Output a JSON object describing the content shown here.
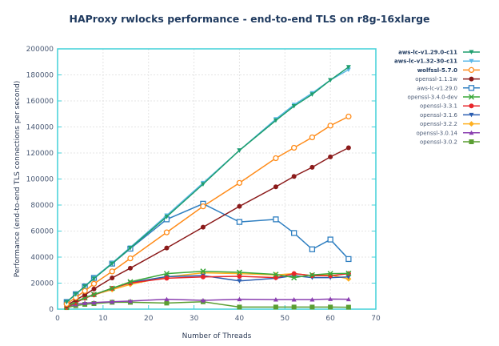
{
  "chart_data": {
    "type": "line",
    "title": "HAProxy rwlocks performance - end-to-end TLS on r8g-16xlarge",
    "xlabel": "Number of Threads",
    "ylabel": "Performance (end-to-end TLS connections per second)",
    "xlim": [
      0,
      70
    ],
    "ylim": [
      0,
      200000
    ],
    "xticks": [
      0,
      10,
      20,
      30,
      40,
      50,
      60,
      70
    ],
    "yticks": [
      0,
      20000,
      40000,
      60000,
      80000,
      100000,
      120000,
      140000,
      160000,
      180000,
      200000
    ],
    "grid": true,
    "legend": "right",
    "x": [
      2,
      4,
      6,
      8,
      12,
      16,
      24,
      32,
      40,
      48,
      52,
      56,
      60,
      64
    ],
    "series": [
      {
        "name": "aws-lc-v1.29.0-c11",
        "color": "#1e9e6e",
        "marker": "triangle-down",
        "bold": true,
        "values": [
          5500,
          11500,
          17500,
          23500,
          35000,
          47000,
          71000,
          96000,
          122000,
          145000,
          156000,
          165000,
          176000,
          186000
        ]
      },
      {
        "name": "aws-lc-v1.32-30-c11",
        "color": "#5bb8e8",
        "marker": "triangle-down",
        "bold": true,
        "values": [
          5500,
          11500,
          17500,
          24000,
          35500,
          47500,
          72000,
          97000,
          122000,
          146000,
          157000,
          166000,
          176000,
          184000
        ]
      },
      {
        "name": "wolfssl-5.7.0",
        "color": "#ff8c1a",
        "marker": "circle-open",
        "bold": true,
        "values": [
          4000,
          9000,
          14000,
          19500,
          29000,
          39000,
          59000,
          79000,
          97000,
          116000,
          124000,
          132000,
          141000,
          148000
        ]
      },
      {
        "name": "openssl-1.1.1w",
        "color": "#8b1a1a",
        "marker": "circle",
        "values": [
          3000,
          7000,
          11000,
          15500,
          24000,
          31500,
          47000,
          63000,
          79000,
          94000,
          102000,
          109000,
          117000,
          124000
        ]
      },
      {
        "name": "aws-lc-v1.29.0",
        "color": "#2f7fc1",
        "marker": "square-open",
        "values": [
          5500,
          11500,
          17500,
          24000,
          35000,
          46500,
          69000,
          81000,
          67000,
          69000,
          58500,
          46000,
          53500,
          38500
        ]
      },
      {
        "name": "openssl-3.4.0-dev",
        "color": "#3aa83a",
        "marker": "x",
        "values": [
          2000,
          5700,
          8800,
          11300,
          16000,
          21000,
          27300,
          29100,
          28300,
          26700,
          24200,
          26300,
          27300,
          27500
        ]
      },
      {
        "name": "openssl-3.3.1",
        "color": "#e8262b",
        "marker": "circle",
        "values": [
          1500,
          5000,
          8500,
          11000,
          16000,
          20100,
          23800,
          24800,
          25200,
          24200,
          27300,
          25800,
          25600,
          27300
        ]
      },
      {
        "name": "openssl-3.1.6",
        "color": "#2a5db0",
        "marker": "triangle-down",
        "values": [
          1500,
          5000,
          8500,
          11000,
          16000,
          20500,
          25000,
          25800,
          21700,
          23800,
          25800,
          24200,
          24200,
          24800
        ]
      },
      {
        "name": "openssl-3.2.2",
        "color": "#ffb020",
        "marker": "diamond",
        "values": [
          1500,
          5000,
          8500,
          11000,
          15000,
          19000,
          24800,
          27900,
          27300,
          26300,
          27300,
          25800,
          26300,
          23200
        ]
      },
      {
        "name": "openssl-3.0.14",
        "color": "#8a3fb0",
        "marker": "triangle-up",
        "values": [
          2000,
          3700,
          4700,
          5100,
          5700,
          6200,
          7600,
          6800,
          7600,
          7400,
          7400,
          7400,
          7800,
          7600
        ]
      },
      {
        "name": "openssl-3.0.2",
        "color": "#5a9e32",
        "marker": "square",
        "values": [
          1200,
          2700,
          3700,
          4300,
          5300,
          5300,
          4700,
          5700,
          1600,
          1600,
          1600,
          1600,
          1600,
          1500
        ]
      }
    ]
  }
}
